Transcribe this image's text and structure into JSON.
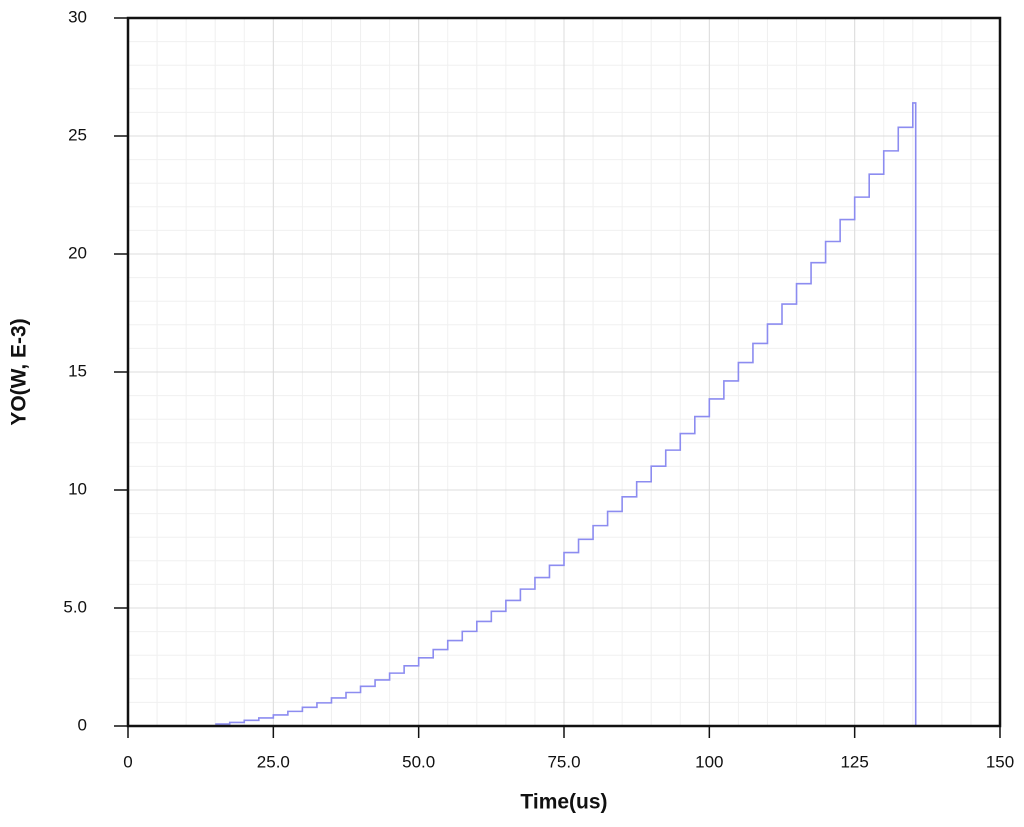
{
  "chart_data": {
    "type": "line",
    "step": "post",
    "xlabel": "Time(us)",
    "ylabel": "YO(W, E-3)",
    "xlim": [
      0,
      150
    ],
    "ylim": [
      0,
      30
    ],
    "xticks": [
      0,
      {
        "value": 25,
        "label": "25.0"
      },
      {
        "value": 50,
        "label": "50.0"
      },
      {
        "value": 75,
        "label": "75.0"
      },
      100,
      125,
      150
    ],
    "yticks": [
      0,
      {
        "value": 5,
        "label": "5.0"
      },
      10,
      15,
      20,
      25,
      30
    ],
    "xminor": 5,
    "yminor": 1,
    "grid": true,
    "series": [
      {
        "name": "YO",
        "color": "#8c8cf0",
        "x": [
          15,
          17.5,
          20,
          22.5,
          25,
          27.5,
          30,
          32.5,
          35,
          37.5,
          40,
          42.5,
          45,
          47.5,
          50,
          52.5,
          55,
          57.5,
          60,
          62.5,
          65,
          67.5,
          70,
          72.5,
          75,
          77.5,
          80,
          82.5,
          85,
          87.5,
          90,
          92.5,
          95,
          97.5,
          100,
          102.5,
          105,
          107.5,
          110,
          112.5,
          115,
          117.5,
          120,
          122.5,
          125,
          127.5,
          130,
          132.5,
          135,
          135.5
        ],
        "values": [
          0.08,
          0.15,
          0.24,
          0.34,
          0.47,
          0.62,
          0.79,
          0.98,
          1.19,
          1.42,
          1.68,
          1.95,
          2.24,
          2.55,
          2.89,
          3.24,
          3.62,
          4.01,
          4.43,
          4.86,
          5.32,
          5.8,
          6.29,
          6.81,
          7.35,
          7.91,
          8.49,
          9.09,
          9.71,
          10.35,
          11.01,
          11.69,
          12.39,
          13.11,
          13.86,
          14.62,
          15.4,
          16.21,
          17.03,
          17.88,
          18.74,
          19.63,
          20.53,
          21.46,
          22.41,
          23.38,
          24.37,
          25.37,
          26.4,
          0
        ]
      }
    ]
  }
}
